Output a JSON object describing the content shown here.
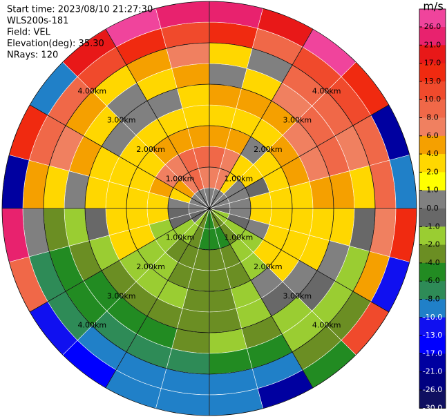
{
  "chart_data": {
    "type": "ppi",
    "header": [
      "Start time: 2023/08/10 21:27:30",
      "WLS200s-181",
      "Field: VEL",
      "Elevation(deg): 35.30",
      "NRays: 120"
    ],
    "range_labels": [
      "1.00km",
      "2.00km",
      "3.00km",
      "4.00km"
    ],
    "colorbar_title": "m/s",
    "colorbar_ticks": [
      {
        "value": 26,
        "label": "26.0"
      },
      {
        "value": 21,
        "label": "21.0"
      },
      {
        "value": 17,
        "label": "17.0"
      },
      {
        "value": 13,
        "label": "13.0"
      },
      {
        "value": 10,
        "label": "10.0"
      },
      {
        "value": 8,
        "label": "8.0"
      },
      {
        "value": 6,
        "label": "6.0"
      },
      {
        "value": 4,
        "label": "4.0"
      },
      {
        "value": 2,
        "label": "2.0"
      },
      {
        "value": 1,
        "label": "1.0"
      },
      {
        "value": 0,
        "label": "0.0"
      },
      {
        "value": -1,
        "label": "-1.0"
      },
      {
        "value": -2,
        "label": "-2.0"
      },
      {
        "value": -4,
        "label": "-4.0"
      },
      {
        "value": -6,
        "label": "-6.0"
      },
      {
        "value": -8,
        "label": "-8.0"
      },
      {
        "value": -10,
        "label": "-10.0"
      },
      {
        "value": -13,
        "label": "-13.0"
      },
      {
        "value": -17,
        "label": "-17.0"
      },
      {
        "value": -21,
        "label": "-21.0"
      },
      {
        "value": -26,
        "label": "-26.0"
      },
      {
        "value": -30,
        "label": "-30.0"
      }
    ],
    "colors": [
      "#f0449c",
      "#e8226e",
      "#e81818",
      "#f02a10",
      "#f04a2c",
      "#f06848",
      "#f08060",
      "#f5a000",
      "#ffd700",
      "#ffff00",
      "#808080",
      "#686868",
      "#9acd32",
      "#6b8e23",
      "#228b22",
      "#2e8b57",
      "#2080c8",
      "#1010f0",
      "#0000ff",
      "#0000a0",
      "#000080",
      "#101060"
    ],
    "values": [
      [
        0,
        6,
        8,
        4,
        2,
        4,
        0,
        2,
        13,
        21
      ],
      [
        0,
        6,
        6,
        4,
        2,
        4,
        2,
        0,
        8,
        17
      ],
      [
        0,
        2,
        2,
        0,
        2,
        4,
        6,
        8,
        10,
        26
      ],
      [
        0,
        0,
        2,
        2,
        4,
        6,
        8,
        8,
        10,
        13
      ],
      [
        0,
        0,
        -1,
        2,
        4,
        6,
        8,
        6,
        8,
        -21
      ],
      [
        0,
        0,
        2,
        2,
        2,
        4,
        4,
        2,
        8,
        -10
      ],
      [
        -1,
        0,
        2,
        2,
        2,
        2,
        2,
        -1,
        6,
        13
      ],
      [
        -2,
        -1,
        0,
        2,
        2,
        2,
        0,
        -2,
        4,
        -13
      ],
      [
        -2,
        -2,
        -2,
        2,
        2,
        0,
        -1,
        -2,
        -4,
        10
      ],
      [
        -4,
        -4,
        -2,
        -2,
        0,
        -1,
        -2,
        -2,
        -4,
        -6
      ],
      [
        -4,
        -6,
        -4,
        -4,
        -2,
        -2,
        -4,
        -6,
        -10,
        -21
      ],
      [
        -6,
        -6,
        -4,
        -4,
        -4,
        -4,
        -2,
        -6,
        -10,
        -10
      ],
      [
        -6,
        -6,
        -4,
        -4,
        -4,
        -4,
        -4,
        -8,
        -10,
        -10
      ],
      [
        -4,
        -4,
        -4,
        -4,
        -2,
        -4,
        -6,
        -8,
        -10,
        -10
      ],
      [
        -2,
        -2,
        -4,
        -2,
        -2,
        -4,
        -6,
        -8,
        -10,
        -17
      ],
      [
        -1,
        -2,
        -2,
        -2,
        -2,
        -4,
        -6,
        -6,
        -8,
        -13
      ],
      [
        -1,
        -1,
        -2,
        2,
        2,
        -2,
        -4,
        -6,
        -8,
        8
      ],
      [
        0,
        -1,
        2,
        2,
        2,
        -1,
        -2,
        -4,
        0,
        21
      ],
      [
        0,
        0,
        2,
        2,
        2,
        2,
        0,
        2,
        4,
        -21
      ],
      [
        0,
        2,
        4,
        2,
        2,
        2,
        4,
        6,
        8,
        13
      ],
      [
        0,
        4,
        6,
        2,
        2,
        0,
        2,
        4,
        8,
        -10
      ],
      [
        0,
        6,
        6,
        4,
        2,
        0,
        0,
        2,
        10,
        17
      ],
      [
        0,
        8,
        8,
        4,
        2,
        0,
        2,
        4,
        13,
        26
      ],
      [
        0,
        6,
        8,
        4,
        2,
        2,
        4,
        6,
        10,
        21
      ]
    ]
  }
}
